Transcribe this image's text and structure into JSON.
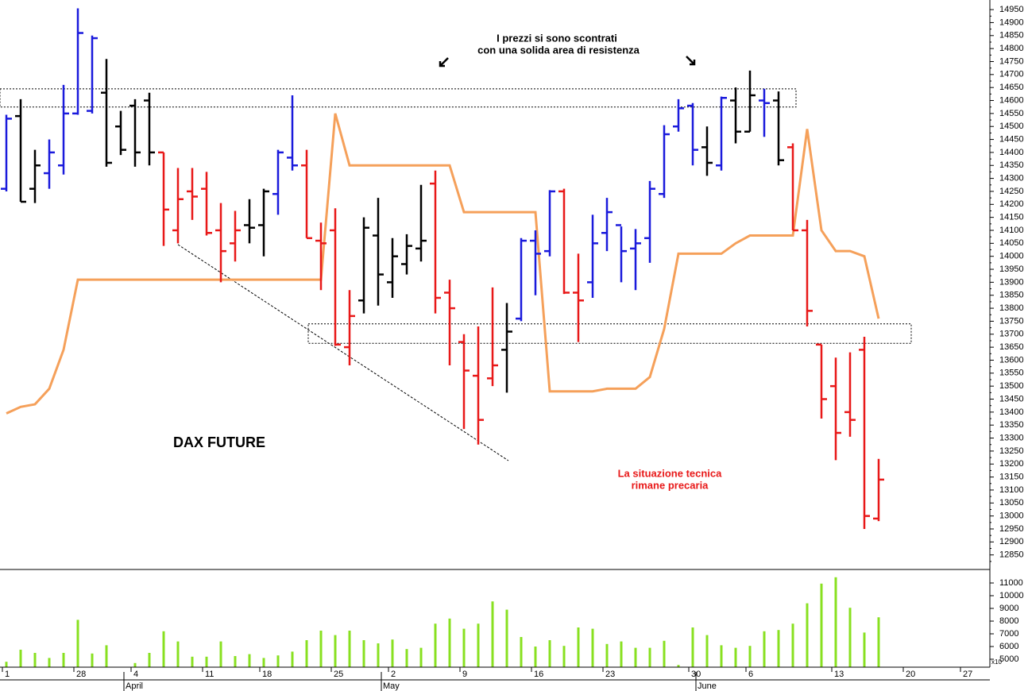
{
  "chart_data": {
    "type": "ohlc",
    "title": "DAX FUTURE",
    "annotations": [
      "I prezzi si sono scontrati",
      "con una solida area di resistenza",
      "La situazione tecnica",
      "rimane precaria"
    ],
    "categories": [
      "1",
      null,
      null,
      null,
      null,
      "28",
      null,
      null,
      null,
      "4",
      null,
      null,
      null,
      null,
      "11",
      null,
      null,
      null,
      "18",
      null,
      null,
      null,
      null,
      "25",
      null,
      null,
      null,
      "2",
      null,
      null,
      null,
      null,
      "9",
      null,
      null,
      null,
      null,
      "16",
      null,
      null,
      null,
      null,
      "23",
      null,
      null,
      null,
      null,
      null,
      "30",
      null,
      null,
      null,
      "6",
      null,
      null,
      null,
      null,
      null,
      "13",
      null,
      null,
      null,
      null,
      "20",
      null,
      null,
      null,
      "27"
    ],
    "month_labels": [
      null,
      null,
      null,
      null,
      null,
      null,
      null,
      null,
      null,
      "April",
      null,
      null,
      null,
      null,
      null,
      null,
      null,
      null,
      null,
      null,
      null,
      null,
      null,
      null,
      null,
      null,
      null,
      "May",
      null,
      null,
      null,
      null,
      null,
      null,
      null,
      null,
      null,
      null,
      null,
      null,
      null,
      null,
      null,
      null,
      null,
      null,
      null,
      null,
      null,
      "June",
      null,
      null,
      null,
      null,
      null,
      null,
      null,
      null,
      null,
      null,
      null,
      null,
      null,
      null,
      null,
      null,
      null,
      null
    ],
    "open": [
      14260,
      14540,
      14260,
      14320,
      14350,
      14550,
      14560,
      14630,
      14500,
      14580,
      14600,
      14400,
      14100,
      14250,
      14260,
      14100,
      14050,
      14120,
      14120,
      14240,
      14380,
      14350,
      14060,
      14100,
      13650,
      13830,
      14080,
      13900,
      13970,
      14030,
      14280,
      13860,
      13670,
      13540,
      13530,
      13640,
      13760,
      14060,
      14020,
      14250,
      13860,
      13900,
      14090,
      14120,
      14030,
      14070,
      14240,
      14500,
      14580,
      14420,
      14350,
      14600,
      14480,
      14600,
      14600,
      14420,
      14100,
      13660,
      13500,
      13400,
      13640,
      12990,
      null,
      null,
      null,
      null,
      null,
      null
    ],
    "high": [
      14545,
      14605,
      14410,
      14450,
      14660,
      14955,
      14850,
      14760,
      14560,
      14605,
      14630,
      14400,
      14340,
      14340,
      14325,
      14205,
      14175,
      14220,
      14260,
      14410,
      14620,
      14410,
      14130,
      14185,
      13870,
      14150,
      14225,
      14070,
      14085,
      14275,
      14330,
      13910,
      13700,
      13730,
      13880,
      13820,
      14070,
      14100,
      14255,
      14260,
      14010,
      14160,
      14225,
      14115,
      14105,
      14290,
      14505,
      14605,
      14590,
      14500,
      14615,
      14650,
      14715,
      14645,
      14635,
      14435,
      14140,
      13660,
      13610,
      13630,
      13690,
      13220,
      null,
      null,
      null,
      null,
      null,
      null
    ],
    "low": [
      14250,
      14210,
      14205,
      14260,
      14315,
      14545,
      14550,
      14345,
      14390,
      14345,
      14350,
      14040,
      14050,
      14140,
      14080,
      13900,
      13980,
      14050,
      14000,
      14160,
      14330,
      14070,
      13870,
      13655,
      13580,
      13780,
      13810,
      13840,
      13930,
      13980,
      13780,
      13580,
      13335,
      13275,
      13500,
      13475,
      13750,
      13850,
      14000,
      13855,
      13670,
      13840,
      14020,
      13900,
      13870,
      13975,
      14225,
      14480,
      14350,
      14310,
      14330,
      14435,
      14480,
      14460,
      14350,
      14100,
      13730,
      13375,
      13215,
      13305,
      12950,
      12980,
      null,
      null,
      null,
      null,
      null,
      null
    ],
    "close": [
      14530,
      14210,
      14350,
      14400,
      14550,
      14860,
      14840,
      14360,
      14410,
      14400,
      14400,
      14180,
      14220,
      14230,
      14090,
      14020,
      14100,
      14110,
      14250,
      14400,
      14350,
      14070,
      14050,
      13660,
      13770,
      14110,
      13930,
      14000,
      14040,
      14060,
      13840,
      13800,
      13560,
      13370,
      13580,
      13710,
      14060,
      14010,
      14250,
      13860,
      13830,
      14050,
      14170,
      14020,
      14050,
      14260,
      14470,
      14570,
      14410,
      14360,
      14610,
      14480,
      14620,
      14590,
      14370,
      14100,
      13790,
      13450,
      13320,
      13370,
      13000,
      13140,
      null,
      null,
      null,
      null,
      null,
      null
    ],
    "bar_colors": [
      "#1a1adc",
      "#000000",
      "#000000",
      "#1a1adc",
      "#1a1adc",
      "#1a1adc",
      "#1a1adc",
      "#000000",
      "#000000",
      "#000000",
      "#000000",
      "#e81818",
      "#e81818",
      "#e81818",
      "#e81818",
      "#e81818",
      "#e81818",
      "#000000",
      "#000000",
      "#1a1adc",
      "#1a1adc",
      "#e81818",
      "#e81818",
      "#e81818",
      "#e81818",
      "#000000",
      "#000000",
      "#000000",
      "#000000",
      "#000000",
      "#e81818",
      "#e81818",
      "#e81818",
      "#e81818",
      "#e81818",
      "#000000",
      "#1a1adc",
      "#1a1adc",
      "#1a1adc",
      "#e81818",
      "#e81818",
      "#1a1adc",
      "#1a1adc",
      "#1a1adc",
      "#1a1adc",
      "#1a1adc",
      "#1a1adc",
      "#1a1adc",
      "#1a1adc",
      "#000000",
      "#1a1adc",
      "#000000",
      "#000000",
      "#1a1adc",
      "#000000",
      "#e81818",
      "#e81818",
      "#e81818",
      "#e81818",
      "#e81818",
      "#e81818",
      "#e81818",
      null,
      null,
      null,
      null,
      null,
      null
    ],
    "line": {
      "color": "#f5a05a",
      "values": [
        13395,
        13420,
        13430,
        13490,
        13640,
        13910,
        13910,
        13910,
        13910,
        13910,
        13910,
        13910,
        13910,
        13910,
        13910,
        13910,
        13910,
        13910,
        13910,
        13910,
        13910,
        13910,
        13910,
        14550,
        14350,
        14350,
        14350,
        14350,
        14350,
        14350,
        14350,
        14350,
        14170,
        14170,
        14170,
        14170,
        14170,
        14170,
        13480,
        13480,
        13480,
        13480,
        13490,
        13490,
        13490,
        13535,
        13720,
        14010,
        14010,
        14010,
        14010,
        14050,
        14080,
        14080,
        14080,
        14080,
        14490,
        14100,
        14020,
        14020,
        14000,
        13760,
        null,
        null,
        null,
        null,
        null,
        null
      ]
    },
    "zones": [
      {
        "low": 14575,
        "high": 14645
      },
      {
        "low": 13665,
        "high": 13740
      }
    ],
    "trendline": {
      "start": 14045,
      "end": 13213
    },
    "ylim": [
      12797,
      14987
    ],
    "yticks": [
      12850,
      12900,
      12950,
      13000,
      13050,
      13100,
      13150,
      13200,
      13250,
      13300,
      13350,
      13400,
      13450,
      13500,
      13550,
      13600,
      13650,
      13700,
      13750,
      13800,
      13850,
      13900,
      13950,
      14000,
      14050,
      14100,
      14150,
      14200,
      14250,
      14300,
      14350,
      14400,
      14450,
      14500,
      14550,
      14600,
      14650,
      14700,
      14750,
      14800,
      14850,
      14900,
      14950
    ],
    "volume": {
      "color": "#88e020",
      "note": "x10",
      "values": [
        4800,
        5750,
        5500,
        5100,
        5500,
        8100,
        5450,
        6100,
        4400,
        4700,
        5500,
        7200,
        6400,
        5200,
        5200,
        6400,
        5250,
        5400,
        5100,
        5300,
        5600,
        6500,
        7250,
        6900,
        7250,
        6500,
        6250,
        6550,
        5800,
        5900,
        7800,
        8200,
        7400,
        7800,
        9550,
        8900,
        6750,
        6000,
        6500,
        6050,
        7500,
        7400,
        6200,
        6400,
        5900,
        5900,
        6450,
        4550,
        7500,
        6900,
        6100,
        5900,
        6050,
        7200,
        7300,
        7800,
        9400,
        10950,
        11450,
        9050,
        7100,
        8300,
        null,
        null,
        null,
        null,
        null,
        null
      ],
      "ylim": [
        4375,
        12000
      ],
      "yticks": [
        5000,
        6000,
        7000,
        8000,
        9000,
        10000,
        11000
      ]
    }
  }
}
